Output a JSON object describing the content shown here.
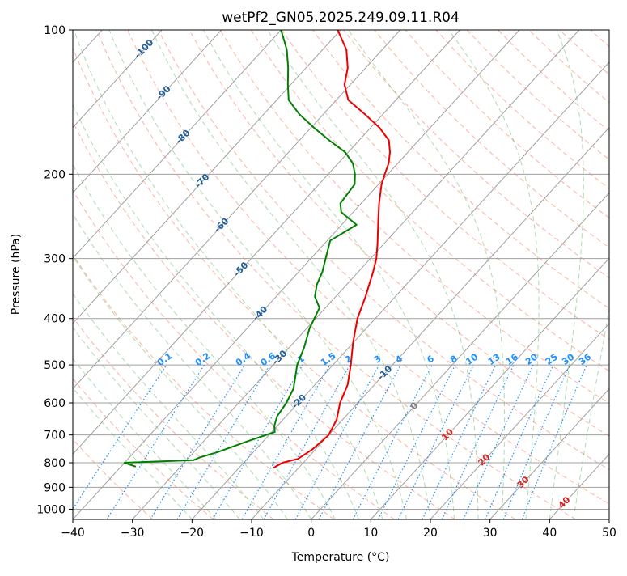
{
  "chart_data": {
    "type": "line",
    "title": "wetPf2_GN05.2025.249.09.11.R04",
    "xlabel": "Temperature (°C)",
    "ylabel": "Pressure (hPa)",
    "xlim": [
      -40,
      50
    ],
    "ylim": [
      1050,
      100
    ],
    "y_scale": "log",
    "grid": true,
    "x_ticks": [
      -40,
      -30,
      -20,
      -10,
      0,
      10,
      20,
      30,
      40,
      50
    ],
    "y_ticks": [
      100,
      200,
      300,
      400,
      500,
      600,
      700,
      800,
      900,
      1000
    ],
    "skew_isotherm_labels": [
      "-100",
      "-90",
      "-80",
      "-70",
      "-60",
      "-50",
      "-40",
      "-30",
      "-20",
      "-10",
      "0",
      "10",
      "20",
      "30",
      "40"
    ],
    "mixing_ratio_labels": [
      "0.1",
      "0.2",
      "0.4",
      "0.6",
      "1",
      "1.5",
      "2",
      "3",
      "4",
      "6",
      "8",
      "10",
      "13",
      "16",
      "20",
      "25",
      "30",
      "36"
    ],
    "colors": {
      "temperature": "#ee0000",
      "dewpoint": "#008000",
      "skew_isotherm_label": "#1f5f99",
      "warm_isotherm_label": "#d62728",
      "zero_isotherm_label": "#808080",
      "mixing_ratio": "#1e90ff",
      "dry_adiabat": "#fa8064",
      "moist_adiabat": "#4caf50",
      "isotherm": "#a0a0a0"
    },
    "series": [
      {
        "name": "Temperature",
        "pressure": [
          820,
          800,
          785,
          750,
          700,
          650,
          600,
          550,
          500,
          450,
          400,
          360,
          320,
          300,
          280,
          250,
          230,
          210,
          200,
          190,
          180,
          170,
          160,
          150,
          140,
          130,
          120,
          110,
          100
        ],
        "values": [
          -14.2,
          -13.5,
          -11.5,
          -10.5,
          -10.0,
          -11.0,
          -13.0,
          -14.5,
          -17.0,
          -20.0,
          -23.0,
          -25.0,
          -27.5,
          -29.0,
          -31.0,
          -34.5,
          -37.0,
          -39.5,
          -40.5,
          -41.5,
          -43.0,
          -45.0,
          -48.5,
          -53.0,
          -58.0,
          -61.0,
          -63.0,
          -66.0,
          -70.5
        ]
      },
      {
        "name": "Dewpoint",
        "pressure": [
          815,
          800,
          790,
          780,
          760,
          720,
          690,
          670,
          640,
          600,
          560,
          500,
          460,
          420,
          380,
          360,
          340,
          320,
          300,
          275,
          255,
          240,
          230,
          210,
          200,
          190,
          180,
          170,
          160,
          150,
          140,
          130,
          120,
          110,
          100
        ],
        "values": [
          -37.5,
          -40.0,
          -28.8,
          -28.2,
          -26.0,
          -22.5,
          -19.5,
          -20.5,
          -21.5,
          -22.0,
          -23.0,
          -26.0,
          -27.5,
          -29.5,
          -31.0,
          -33.5,
          -35.0,
          -36.0,
          -37.5,
          -39.5,
          -37.5,
          -42.0,
          -43.5,
          -44.0,
          -45.5,
          -47.5,
          -50.5,
          -55.0,
          -59.5,
          -64.0,
          -68.0,
          -70.5,
          -73.0,
          -76.0,
          -80.0
        ]
      }
    ]
  }
}
